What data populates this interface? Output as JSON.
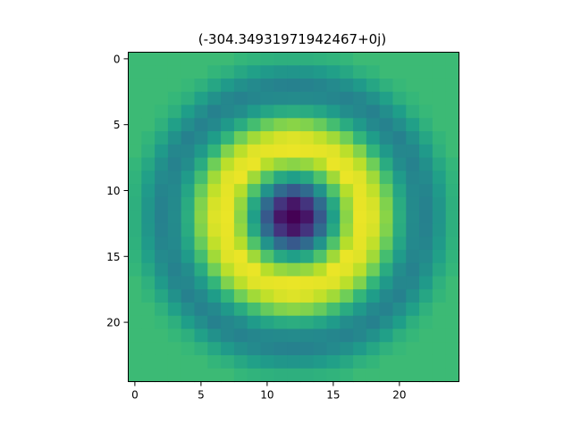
{
  "chart_data": {
    "type": "heatmap",
    "title": "(-304.34931971942467+0j)",
    "xlabel": "",
    "ylabel": "",
    "grid": false,
    "n_cols": 25,
    "n_rows": 25,
    "center": [
      12,
      12
    ],
    "xlim": [
      -0.5,
      24.5
    ],
    "ylim": [
      24.5,
      -0.5
    ],
    "x_ticks": [
      0,
      5,
      10,
      15,
      20
    ],
    "y_ticks": [
      0,
      5,
      10,
      15,
      20
    ],
    "colormap": "viridis",
    "radial_profile": [
      {
        "r": 0,
        "value": 0.0
      },
      {
        "r": 1,
        "value": 0.06
      },
      {
        "r": 2,
        "value": 0.28
      },
      {
        "r": 3,
        "value": 0.56
      },
      {
        "r": 4,
        "value": 0.82
      },
      {
        "r": 5,
        "value": 0.97
      },
      {
        "r": 6,
        "value": 0.95
      },
      {
        "r": 7,
        "value": 0.82
      },
      {
        "r": 8,
        "value": 0.62
      },
      {
        "r": 9,
        "value": 0.48
      },
      {
        "r": 10,
        "value": 0.44
      },
      {
        "r": 11,
        "value": 0.52
      },
      {
        "r": 12,
        "value": 0.63
      },
      {
        "r": 13,
        "value": 0.68
      }
    ],
    "outside_value": 0.68
  },
  "colors": {
    "viridis_stops": [
      "#440154",
      "#482878",
      "#3e4989",
      "#31688e",
      "#26828e",
      "#1f9e89",
      "#35b779",
      "#6ece58",
      "#b5de2b",
      "#fde725"
    ]
  }
}
